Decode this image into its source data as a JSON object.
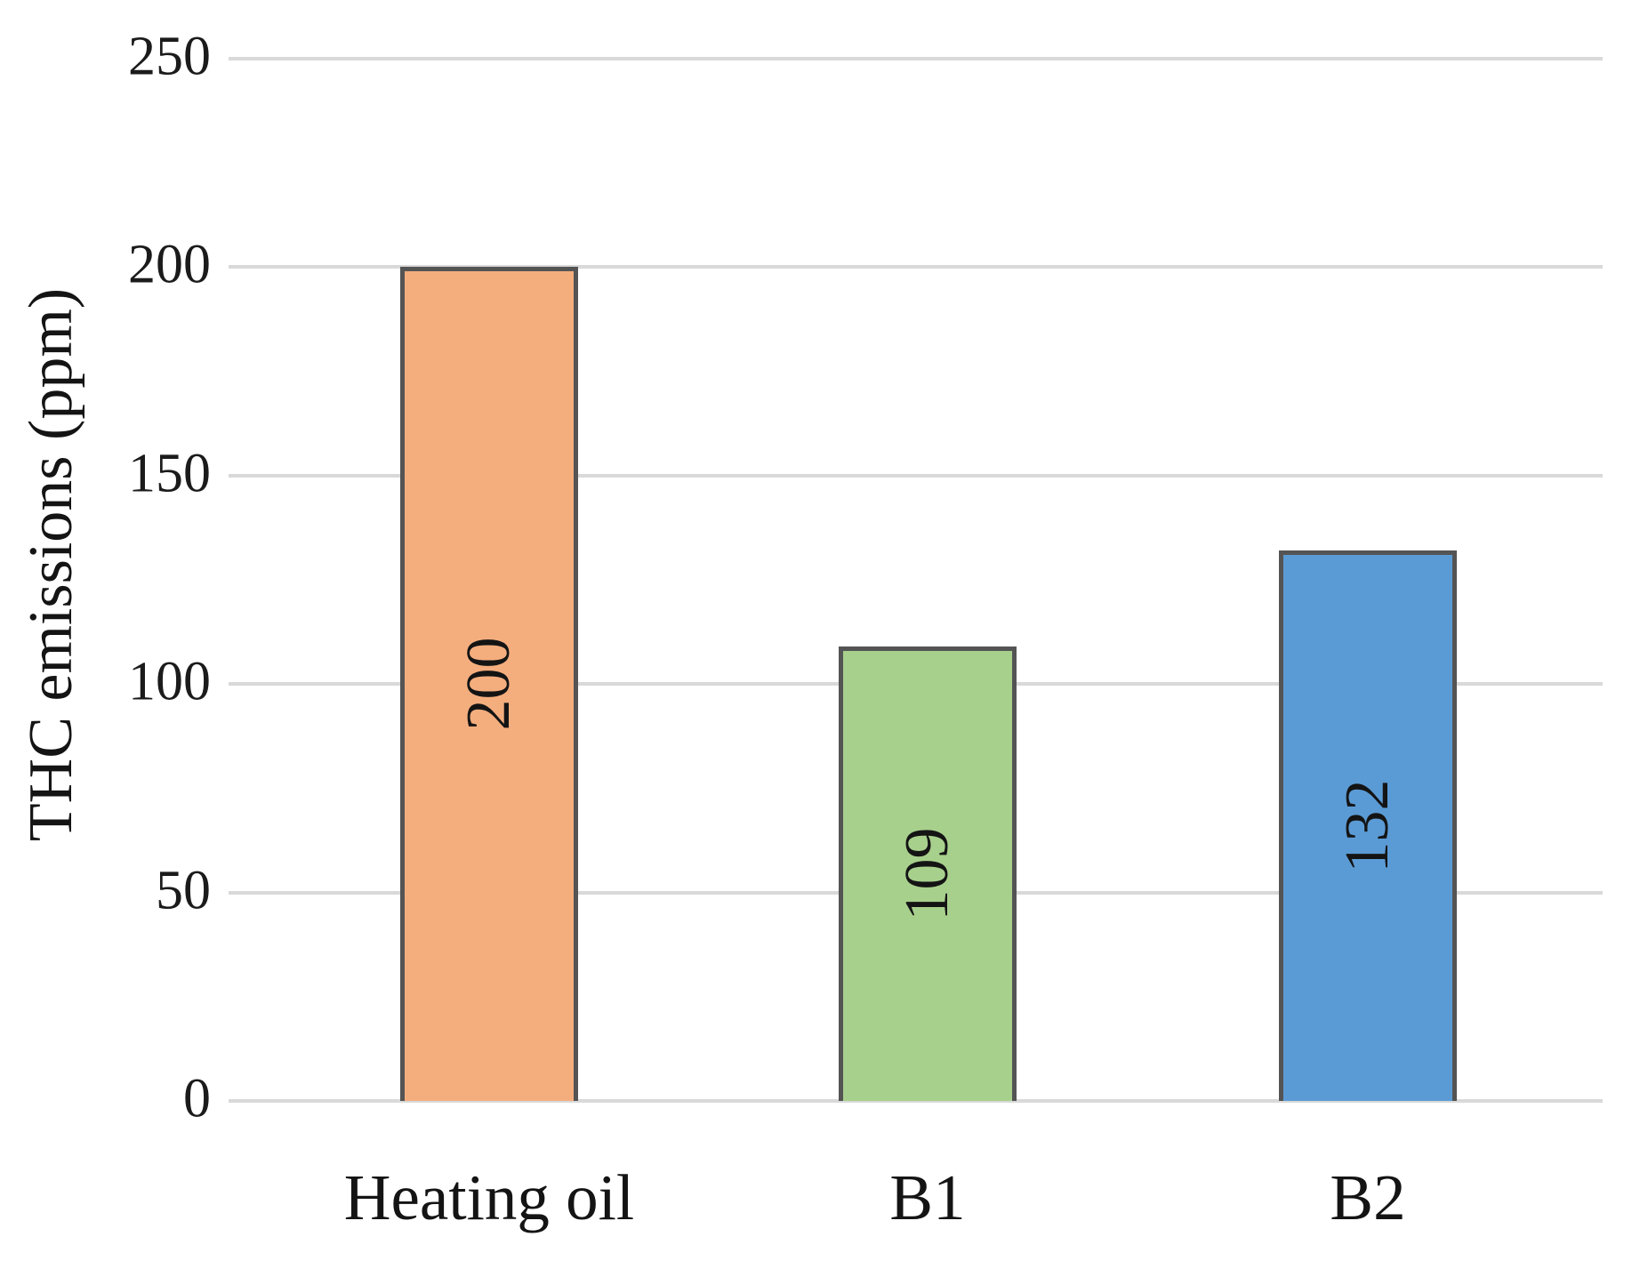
{
  "chart_data": {
    "type": "bar",
    "title": "",
    "categories": [
      "Heating oil",
      "B1",
      "B2"
    ],
    "values": [
      200,
      109,
      132
    ],
    "data_labels": [
      "200",
      "109",
      "132"
    ],
    "ylabel": "THC emissions (ppm)",
    "xlabel": "",
    "yticks": [
      0,
      50,
      100,
      150,
      200,
      250
    ],
    "ylim": [
      0,
      250
    ],
    "grid": "horizontal",
    "legend_position": "none",
    "bar_colors": [
      "#F4AE7E",
      "#A8D08D",
      "#5B9BD5"
    ],
    "bar_border_color": "#545454",
    "gridline_color": "#D9D9D9",
    "text_color": "#141414",
    "background_color": "#FFFFFF"
  }
}
